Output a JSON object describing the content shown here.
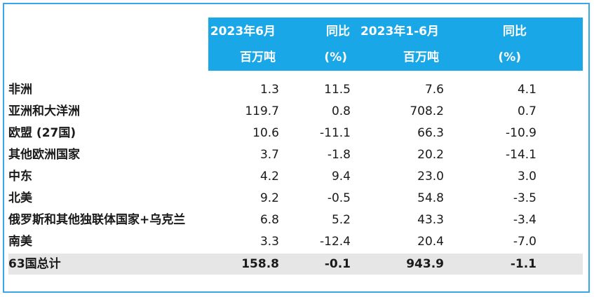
{
  "header": {
    "col1_line1": "2023年6月",
    "col1_line2": "百万吨",
    "col2_line1": "同比",
    "col2_line2": "(%)",
    "col3_line1": "2023年1-6月",
    "col3_line2": "百万吨",
    "col4_line1": "同比",
    "col4_line2": "(%)"
  },
  "rows": [
    {
      "label": "非洲",
      "v1": "1.3",
      "v2": "11.5",
      "v3": "7.6",
      "v4": "4.1"
    },
    {
      "label": "亚洲和大洋洲",
      "v1": "119.7",
      "v2": "0.8",
      "v3": "708.2",
      "v4": "0.7"
    },
    {
      "label": "欧盟 (27国)",
      "v1": "10.6",
      "v2": "-11.1",
      "v3": "66.3",
      "v4": "-10.9"
    },
    {
      "label": "其他欧洲国家",
      "v1": "3.7",
      "v2": "-1.8",
      "v3": "20.2",
      "v4": "-14.1"
    },
    {
      "label": "中东",
      "v1": "4.2",
      "v2": "9.4",
      "v3": "23.0",
      "v4": "3.0"
    },
    {
      "label": "北美",
      "v1": "9.2",
      "v2": "-0.5",
      "v3": "54.8",
      "v4": "-3.5"
    },
    {
      "label": "俄罗斯和其他独联体国家+乌克兰",
      "v1": "6.8",
      "v2": "5.2",
      "v3": "43.3",
      "v4": "-3.4"
    },
    {
      "label": "南美",
      "v1": "3.3",
      "v2": "-12.4",
      "v3": "20.4",
      "v4": "-7.0"
    }
  ],
  "total": {
    "label": "63国总计",
    "v1": "158.8",
    "v2": "-0.1",
    "v3": "943.9",
    "v4": "-1.1"
  },
  "colors": {
    "header_bg": "#1aa7e8",
    "frame_border": "#3aa6e8",
    "total_bg": "#e6e6e6"
  }
}
